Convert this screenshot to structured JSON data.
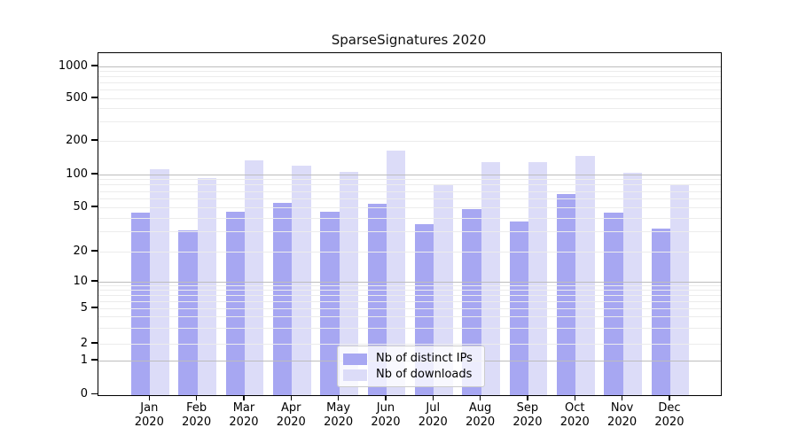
{
  "chart_data": {
    "type": "bar",
    "title": "SparseSignatures 2020",
    "categories": [
      "Jan",
      "Feb",
      "Mar",
      "Apr",
      "May",
      "Jun",
      "Jul",
      "Aug",
      "Sep",
      "Oct",
      "Nov",
      "Dec"
    ],
    "year_label": "2020",
    "series": [
      {
        "name": "Nb of distinct IPs",
        "color": "#a7a7f2",
        "values": [
          45,
          31,
          46,
          55,
          46,
          54,
          35,
          48,
          37,
          66,
          45,
          32
        ]
      },
      {
        "name": "Nb of downloads",
        "color": "#dcdcf8",
        "values": [
          112,
          92,
          134,
          121,
          106,
          164,
          82,
          128,
          128,
          147,
          104,
          80
        ]
      }
    ],
    "yticks": [
      0,
      1,
      2,
      5,
      10,
      20,
      50,
      100,
      200,
      500,
      1000
    ],
    "yscale": "symlog",
    "ylim": [
      0,
      1300
    ],
    "grid": "on",
    "legend_position": "lower center",
    "colors": {
      "major_grid": "#bdbdbd",
      "minor_grid": "#ececec",
      "axis": "#000000",
      "legend_border": "#cccccc"
    }
  }
}
